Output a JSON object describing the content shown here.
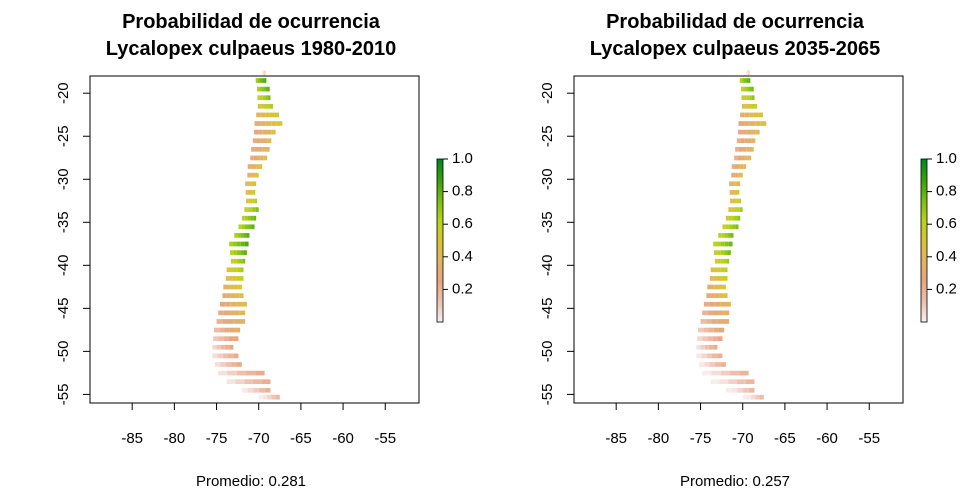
{
  "chart_data": [
    {
      "type": "heatmap",
      "title_lines": [
        "Probabilidad de ocurrencia",
        "Lycalopex culpaeus 1980-2010"
      ],
      "xlabel": "Promedio: 0.281",
      "ylabel": "",
      "xlim": [
        -90,
        -51
      ],
      "ylim": [
        -56,
        -18
      ],
      "xticks": [
        -85,
        -80,
        -75,
        -70,
        -65,
        -60,
        -55
      ],
      "yticks": [
        -20,
        -25,
        -30,
        -35,
        -40,
        -45,
        -50,
        -55
      ],
      "legend": {
        "ticks": [
          0.2,
          0.4,
          0.6,
          0.8,
          1.0
        ],
        "labels": [
          "0.2",
          "0.4",
          "0.6",
          "0.8",
          "1.0"
        ],
        "range": [
          0,
          1
        ],
        "position": "right"
      },
      "colormap": [
        "#f8eded",
        "#eebfae",
        "#e6a67c",
        "#e3b461",
        "#d9c431",
        "#b6d41c",
        "#7bbf12",
        "#38a30c",
        "#008b1e"
      ],
      "mean": 0.281,
      "probability_profile": [
        {
          "lat": -18,
          "p": 0.78
        },
        {
          "lat": -20,
          "p": 0.7
        },
        {
          "lat": -22,
          "p": 0.5
        },
        {
          "lat": -25,
          "p": 0.3
        },
        {
          "lat": -28,
          "p": 0.33
        },
        {
          "lat": -30,
          "p": 0.4
        },
        {
          "lat": -32,
          "p": 0.5
        },
        {
          "lat": -34,
          "p": 0.68
        },
        {
          "lat": -36,
          "p": 0.72
        },
        {
          "lat": -38,
          "p": 0.74
        },
        {
          "lat": -40,
          "p": 0.6
        },
        {
          "lat": -42,
          "p": 0.45
        },
        {
          "lat": -44,
          "p": 0.35
        },
        {
          "lat": -46,
          "p": 0.3
        },
        {
          "lat": -48,
          "p": 0.2
        },
        {
          "lat": -50,
          "p": 0.12
        },
        {
          "lat": -52,
          "p": 0.12
        },
        {
          "lat": -54,
          "p": 0.1
        },
        {
          "lat": -55.5,
          "p": 0.05
        }
      ]
    },
    {
      "type": "heatmap",
      "title_lines": [
        "Probabilidad de ocurrencia",
        "Lycalopex culpaeus 2035-2065"
      ],
      "xlabel": "Promedio: 0.257",
      "ylabel": "",
      "xlim": [
        -90,
        -51
      ],
      "ylim": [
        -56,
        -18
      ],
      "xticks": [
        -85,
        -80,
        -75,
        -70,
        -65,
        -60,
        -55
      ],
      "yticks": [
        -20,
        -25,
        -30,
        -35,
        -40,
        -45,
        -50,
        -55
      ],
      "legend": {
        "ticks": [
          0.2,
          0.4,
          0.6,
          0.8,
          1.0
        ],
        "labels": [
          "0.2",
          "0.4",
          "0.6",
          "0.8",
          "1.0"
        ],
        "range": [
          0,
          1
        ],
        "position": "right"
      },
      "colormap": [
        "#f8eded",
        "#eebfae",
        "#e6a67c",
        "#e3b461",
        "#d9c431",
        "#b6d41c",
        "#7bbf12",
        "#38a30c",
        "#008b1e"
      ],
      "mean": 0.257,
      "probability_profile": [
        {
          "lat": -18,
          "p": 0.75
        },
        {
          "lat": -20,
          "p": 0.65
        },
        {
          "lat": -22,
          "p": 0.45
        },
        {
          "lat": -25,
          "p": 0.28
        },
        {
          "lat": -28,
          "p": 0.3
        },
        {
          "lat": -30,
          "p": 0.35
        },
        {
          "lat": -32,
          "p": 0.45
        },
        {
          "lat": -34,
          "p": 0.6
        },
        {
          "lat": -36,
          "p": 0.66
        },
        {
          "lat": -38,
          "p": 0.68
        },
        {
          "lat": -40,
          "p": 0.55
        },
        {
          "lat": -42,
          "p": 0.42
        },
        {
          "lat": -44,
          "p": 0.32
        },
        {
          "lat": -46,
          "p": 0.25
        },
        {
          "lat": -48,
          "p": 0.15
        },
        {
          "lat": -50,
          "p": 0.1
        },
        {
          "lat": -52,
          "p": 0.08
        },
        {
          "lat": -54,
          "p": 0.06
        },
        {
          "lat": -55.5,
          "p": 0.04
        }
      ]
    }
  ]
}
